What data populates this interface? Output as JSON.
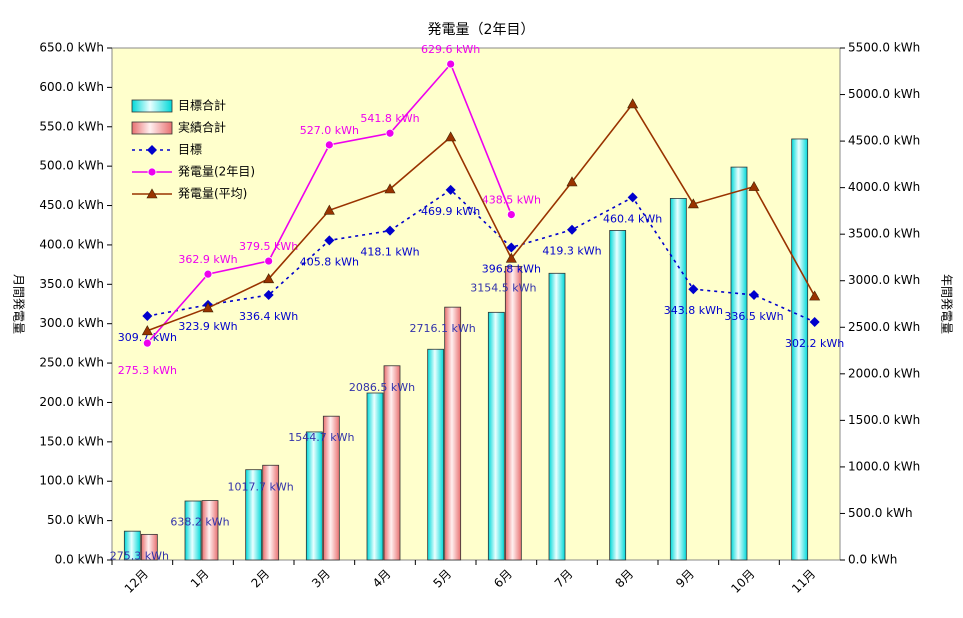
{
  "chart_data": {
    "type": "bar",
    "title": "発電量（2年目）",
    "y_label": "月間発電量",
    "y2_label": "年間発電量",
    "categories": [
      "12月",
      "1月",
      "2月",
      "3月",
      "4月",
      "5月",
      "6月",
      "7月",
      "8月",
      "9月",
      "10月",
      "11月"
    ],
    "ylim": [
      0,
      650
    ],
    "yticks": [
      {
        "value": 0,
        "label": "0.0 kWh"
      },
      {
        "value": 50,
        "label": "50.0 kWh"
      },
      {
        "value": 100,
        "label": "100.0 kWh"
      },
      {
        "value": 150,
        "label": "150.0 kWh"
      },
      {
        "value": 200,
        "label": "200.0 kWh"
      },
      {
        "value": 250,
        "label": "250.0 kWh"
      },
      {
        "value": 300,
        "label": "300.0 kWh"
      },
      {
        "value": 350,
        "label": "350.0 kWh"
      },
      {
        "value": 400,
        "label": "400.0 kWh"
      },
      {
        "value": 450,
        "label": "450.0 kWh"
      },
      {
        "value": 500,
        "label": "500.0 kWh"
      },
      {
        "value": 550,
        "label": "550.0 kWh"
      },
      {
        "value": 600,
        "label": "600.0 kWh"
      },
      {
        "value": 650,
        "label": "650.0 kWh"
      }
    ],
    "y2lim": [
      0,
      5500
    ],
    "y2ticks": [
      {
        "value": 0,
        "label": "0.0 kWh"
      },
      {
        "value": 500,
        "label": "500.0 kWh"
      },
      {
        "value": 1000,
        "label": "1000.0 kWh"
      },
      {
        "value": 1500,
        "label": "1500.0 kWh"
      },
      {
        "value": 2000,
        "label": "2000.0 kWh"
      },
      {
        "value": 2500,
        "label": "2500.0 kWh"
      },
      {
        "value": 3000,
        "label": "3000.0 kWh"
      },
      {
        "value": 3500,
        "label": "3500.0 kWh"
      },
      {
        "value": 4000,
        "label": "4000.0 kWh"
      },
      {
        "value": 4500,
        "label": "4500.0 kWh"
      },
      {
        "value": 5000,
        "label": "5000.0 kWh"
      },
      {
        "value": 5500,
        "label": "5500.0 kWh"
      }
    ],
    "legend": "upper left",
    "series": [
      {
        "name": "目標合計",
        "type": "bar",
        "axis": "y2",
        "color": "#00e8e8",
        "values": [
          309.7,
          633.6,
          970.0,
          1375.8,
          1793.9,
          2263.8,
          2660.6,
          3079.9,
          3540.3,
          3884.1,
          4220.6,
          4522.8
        ]
      },
      {
        "name": "実績合計",
        "type": "bar",
        "axis": "y2",
        "color": "#f08888",
        "values": [
          275.3,
          638.2,
          1017.7,
          1544.7,
          2086.5,
          2716.1,
          3154.5,
          null,
          null,
          null,
          null,
          null
        ],
        "value_labels": [
          "275.3 kWh",
          "638.2 kWh",
          "1017.7 kWh",
          "1544.7 kWh",
          "2086.5 kWh",
          "2716.1 kWh",
          "3154.5 kWh",
          null,
          null,
          null,
          null,
          null
        ]
      },
      {
        "name": "目標",
        "type": "line",
        "style": "dotted",
        "marker": "diamond",
        "color": "#0000cc",
        "values": [
          309.7,
          323.9,
          336.4,
          405.8,
          418.1,
          469.9,
          396.8,
          419.3,
          460.4,
          343.8,
          336.5,
          302.2
        ],
        "value_labels": [
          "309.7 kWh",
          "323.9 kWh",
          "336.4 kWh",
          "405.8 kWh",
          "418.1 kWh",
          "469.9 kWh",
          "396.8 kWh",
          "419.3 kWh",
          "460.4 kWh",
          "343.8 kWh",
          "336.5 kWh",
          "302.2 kWh"
        ]
      },
      {
        "name": "発電量(2年目)",
        "type": "line",
        "style": "solid",
        "marker": "circle",
        "color": "#ee00ee",
        "values": [
          275.3,
          362.9,
          379.5,
          527.0,
          541.8,
          629.6,
          438.5,
          null,
          null,
          null,
          null,
          null
        ],
        "value_labels": [
          "275.3 kWh",
          "362.9 kWh",
          "379.5 kWh",
          "527.0 kWh",
          "541.8 kWh",
          "629.6 kWh",
          "438.5 kWh",
          null,
          null,
          null,
          null,
          null
        ]
      },
      {
        "name": "発電量(平均)",
        "type": "line",
        "style": "solid",
        "marker": "triangle",
        "color": "#993300",
        "values": [
          291,
          320,
          357,
          444,
          471,
          537,
          383,
          480,
          579,
          452,
          474,
          335
        ]
      }
    ]
  }
}
